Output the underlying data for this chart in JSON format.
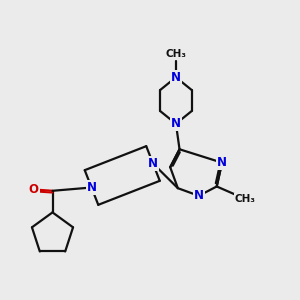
{
  "bg_color": "#ebebeb",
  "bond_color": "#111111",
  "n_color": "#0000dd",
  "o_color": "#cc0000",
  "lw": 1.6,
  "dbo": 0.07,
  "fs": 8.5,
  "fs_me": 7.5,
  "xlim": [
    0,
    10
  ],
  "ylim": [
    0,
    10
  ],
  "figsize": [
    3.0,
    3.0
  ],
  "dpi": 100
}
